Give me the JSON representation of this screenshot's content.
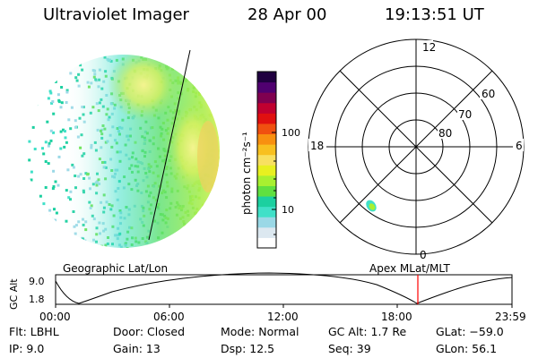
{
  "header": {
    "instrument": "Ultraviolet Imager",
    "date": "28 Apr 00",
    "time": "19:13:51 UT"
  },
  "colorbar": {
    "label": "photon cm⁻²s⁻¹",
    "ticks": [
      "100",
      "10"
    ],
    "colors": [
      "#ffffff",
      "#dce8f0",
      "#9ad8e6",
      "#40e0c8",
      "#1cd0a0",
      "#60e040",
      "#a8f030",
      "#e8f020",
      "#f8e060",
      "#f8c020",
      "#f89010",
      "#f05010",
      "#e01010",
      "#c00030",
      "#800050",
      "#500070",
      "#200040"
    ]
  },
  "polar_plot": {
    "clock_labels": [
      "12",
      "18",
      "6",
      "0"
    ],
    "lat_labels": [
      "60",
      "70",
      "80"
    ]
  },
  "altitude_strip": {
    "left_title": "Geographic Lat/Lon",
    "right_title": "Apex MLat/MLT",
    "axis_label": "GC Alt",
    "y_ticks": [
      "9.0",
      "1.8"
    ],
    "x_ticks": [
      "00:00",
      "06:00",
      "12:00",
      "18:00",
      "23:59"
    ],
    "current_marker_color": "#ff0000"
  },
  "status": {
    "flt": "Flt: LBHL",
    "ip": "IP:  9.0",
    "door": "Door: Closed",
    "gain": "Gain: 13",
    "mode": "Mode: Normal",
    "dsp": "Dsp:    12.5",
    "gc_alt": "GC Alt: 1.7 Re",
    "seq": "Seq: 39",
    "glat": "GLat: −59.0",
    "glon": "GLon:  56.1"
  }
}
